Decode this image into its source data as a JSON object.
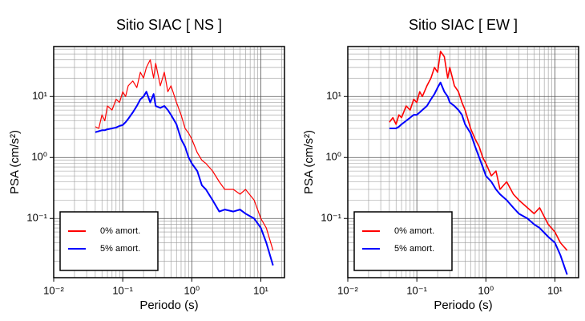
{
  "chart_data": [
    {
      "type": "line",
      "title": "Sitio SIAC [ NS ]",
      "x_label": "Periodo (s)",
      "y_label": "PSA (cm/s²)",
      "log_x": true,
      "log_y": true,
      "grid": true,
      "legend": "lower left",
      "xlim": [
        0.01,
        22
      ],
      "ylim": [
        0.0107,
        66
      ],
      "xticks": [
        {
          "value": 0.01,
          "label": "10⁻²"
        },
        {
          "value": 0.1,
          "label": "10⁻¹"
        },
        {
          "value": 1,
          "label": "10⁰"
        },
        {
          "value": 10,
          "label": "10¹"
        }
      ],
      "yticks": [
        {
          "value": 0.1,
          "label": "10⁻¹"
        },
        {
          "value": 1,
          "label": "10⁰"
        },
        {
          "value": 10,
          "label": "10¹"
        }
      ],
      "x": [
        0.04,
        0.045,
        0.05,
        0.055,
        0.06,
        0.07,
        0.08,
        0.09,
        0.1,
        0.11,
        0.12,
        0.14,
        0.16,
        0.18,
        0.2,
        0.22,
        0.25,
        0.28,
        0.3,
        0.35,
        0.4,
        0.45,
        0.5,
        0.6,
        0.7,
        0.8,
        0.9,
        1,
        1.2,
        1.4,
        1.6,
        2,
        2.5,
        3,
        4,
        5,
        6,
        8,
        10,
        12,
        15
      ],
      "series": [
        {
          "name": "0% amort.",
          "color": "#ff0000",
          "width": 1.2,
          "values": [
            3.2,
            3,
            5,
            4,
            7,
            6,
            9,
            8,
            12,
            10,
            15,
            18,
            14,
            25,
            20,
            30,
            40,
            20,
            35,
            15,
            25,
            12,
            15,
            8,
            5,
            3,
            2.5,
            2,
            1.2,
            0.9,
            0.8,
            0.6,
            0.4,
            0.3,
            0.3,
            0.25,
            0.3,
            0.2,
            0.1,
            0.07,
            0.03
          ]
        },
        {
          "name": "5% amort.",
          "color": "#0000ff",
          "width": 2,
          "values": [
            2.6,
            2.7,
            2.8,
            2.8,
            2.9,
            3.0,
            3.1,
            3.3,
            3.4,
            3.8,
            4.3,
            5.5,
            7,
            9,
            10,
            12,
            8,
            11,
            7,
            6.5,
            7,
            6,
            5,
            3.5,
            2,
            1.5,
            1,
            0.8,
            0.6,
            0.35,
            0.3,
            0.2,
            0.13,
            0.14,
            0.13,
            0.14,
            0.12,
            0.1,
            0.07,
            0.04,
            0.017
          ]
        }
      ]
    },
    {
      "type": "line",
      "title": "Sitio SIAC [ EW ]",
      "x_label": "Periodo (s)",
      "y_label": "PSA (cm/s²)",
      "log_x": true,
      "log_y": true,
      "grid": true,
      "legend": "lower left",
      "xlim": [
        0.01,
        22
      ],
      "ylim": [
        0.0107,
        66
      ],
      "xticks": [
        {
          "value": 0.01,
          "label": "10⁻²"
        },
        {
          "value": 0.1,
          "label": "10⁻¹"
        },
        {
          "value": 1,
          "label": "10⁰"
        },
        {
          "value": 10,
          "label": "10¹"
        }
      ],
      "yticks": [
        {
          "value": 0.1,
          "label": "10⁻¹"
        },
        {
          "value": 1,
          "label": "10⁰"
        },
        {
          "value": 10,
          "label": "10¹"
        }
      ],
      "x": [
        0.04,
        0.045,
        0.05,
        0.055,
        0.06,
        0.07,
        0.08,
        0.09,
        0.1,
        0.11,
        0.12,
        0.14,
        0.16,
        0.18,
        0.2,
        0.22,
        0.25,
        0.28,
        0.3,
        0.35,
        0.4,
        0.45,
        0.5,
        0.6,
        0.7,
        0.8,
        0.9,
        1,
        1.2,
        1.4,
        1.6,
        2,
        2.5,
        3,
        4,
        5,
        6,
        8,
        10,
        12,
        15
      ],
      "series": [
        {
          "name": "0% amort.",
          "color": "#ff0000",
          "width": 1.6,
          "values": [
            3.8,
            4.5,
            3.5,
            5,
            4.5,
            7,
            6,
            9,
            8,
            12,
            10,
            15,
            20,
            30,
            25,
            55,
            45,
            20,
            30,
            15,
            12,
            8,
            6,
            3,
            2,
            1.5,
            1,
            0.8,
            0.5,
            0.6,
            0.3,
            0.4,
            0.25,
            0.2,
            0.15,
            0.12,
            0.15,
            0.08,
            0.06,
            0.04,
            0.03
          ]
        },
        {
          "name": "5% amort.",
          "color": "#0000ff",
          "width": 2,
          "values": [
            3.0,
            3.0,
            3.0,
            3.2,
            3.5,
            4,
            4.5,
            5,
            5,
            5.5,
            6,
            7,
            9,
            11,
            14,
            17,
            12,
            10,
            8,
            7,
            6,
            5,
            3.5,
            2.5,
            1.5,
            1,
            0.7,
            0.5,
            0.4,
            0.3,
            0.25,
            0.2,
            0.15,
            0.12,
            0.1,
            0.08,
            0.07,
            0.05,
            0.04,
            0.025,
            0.012
          ]
        }
      ]
    }
  ]
}
